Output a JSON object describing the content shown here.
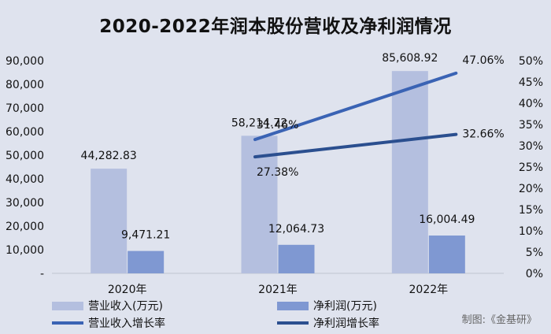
{
  "title": "2020-2022年润本股份营收及净利润情况",
  "credit": "制图:《金基研》",
  "colors": {
    "background": "#dfe3ee",
    "revenue_bar": "#b4bfdf",
    "profit_bar": "#7f98d2",
    "revenue_growth_line": "#3a63b4",
    "profit_growth_line": "#2b4f8f"
  },
  "chart_data": {
    "type": "bar",
    "categories": [
      "2020年",
      "2021年",
      "2022年"
    ],
    "left_axis": {
      "ylim": [
        0,
        90000
      ],
      "ticks": [
        "-",
        "10,000",
        "20,000",
        "30,000",
        "40,000",
        "50,000",
        "60,000",
        "70,000",
        "80,000",
        "90,000"
      ]
    },
    "right_axis": {
      "ylim": [
        0,
        50
      ],
      "ticks": [
        "0%",
        "5%",
        "10%",
        "15%",
        "20%",
        "25%",
        "30%",
        "35%",
        "40%",
        "45%",
        "50%"
      ]
    },
    "series": [
      {
        "name": "营业收入(万元)",
        "kind": "bar",
        "axis": "left",
        "values": [
          44282.83,
          58214.72,
          85608.92
        ],
        "labels": [
          "44,282.83",
          "58,214.72",
          "85,608.92"
        ]
      },
      {
        "name": "净利润(万元)",
        "kind": "bar",
        "axis": "left",
        "values": [
          9471.21,
          12064.73,
          16004.49
        ],
        "labels": [
          "9,471.21",
          "12,064.73",
          "16,004.49"
        ]
      },
      {
        "name": "营业收入增长率",
        "kind": "line",
        "axis": "right",
        "x": [
          "2021年",
          "2022年"
        ],
        "values": [
          31.46,
          47.06
        ],
        "labels": [
          "31.46%",
          "47.06%"
        ]
      },
      {
        "name": "净利润增长率",
        "kind": "line",
        "axis": "right",
        "x": [
          "2021年",
          "2022年"
        ],
        "values": [
          27.38,
          32.66
        ],
        "labels": [
          "27.38%",
          "32.66%"
        ]
      }
    ],
    "legend_position": "bottom"
  }
}
